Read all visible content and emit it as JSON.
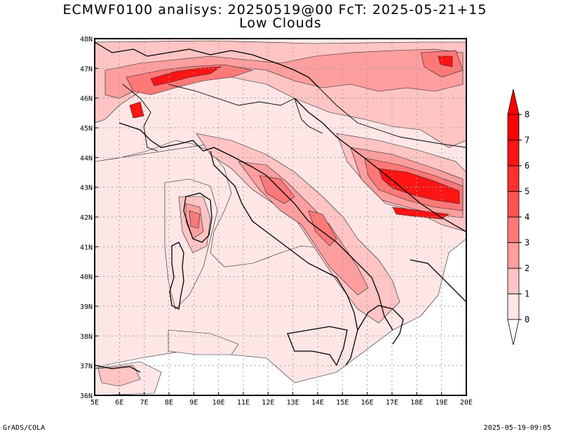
{
  "title_line1": "ECMWF0100 analisys: 20250519@00 FcT: 2025-05-21+15",
  "title_line2": "Low Clouds",
  "footer_left": "GrADS/COLA",
  "footer_right": "2025-05-19-09:05",
  "colors": {
    "level_0_1": "#ffe6e6",
    "level_1_2": "#ffc4c4",
    "level_2_3": "#ff9e9e",
    "level_3_4": "#ff7878",
    "level_4_5": "#ff5252",
    "level_5_6": "#ff3030",
    "level_6_7": "#ff1414",
    "level_7_8": "#ff0000",
    "grid": "#a0a0a0",
    "coast": "#000000"
  },
  "map": {
    "lon_range": [
      5,
      20
    ],
    "lat_range": [
      36,
      48
    ],
    "lon_labels": [
      "5E",
      "6E",
      "7E",
      "8E",
      "9E",
      "10E",
      "11E",
      "12E",
      "13E",
      "14E",
      "15E",
      "16E",
      "17E",
      "18E",
      "19E",
      "20E"
    ],
    "lat_labels": [
      "36N",
      "37N",
      "38N",
      "39N",
      "40N",
      "41N",
      "42N",
      "43N",
      "44N",
      "45N",
      "46N",
      "47N",
      "48N"
    ]
  },
  "colorbar": {
    "labels": [
      "0",
      "1",
      "2",
      "3",
      "4",
      "5",
      "6",
      "7",
      "8"
    ]
  }
}
